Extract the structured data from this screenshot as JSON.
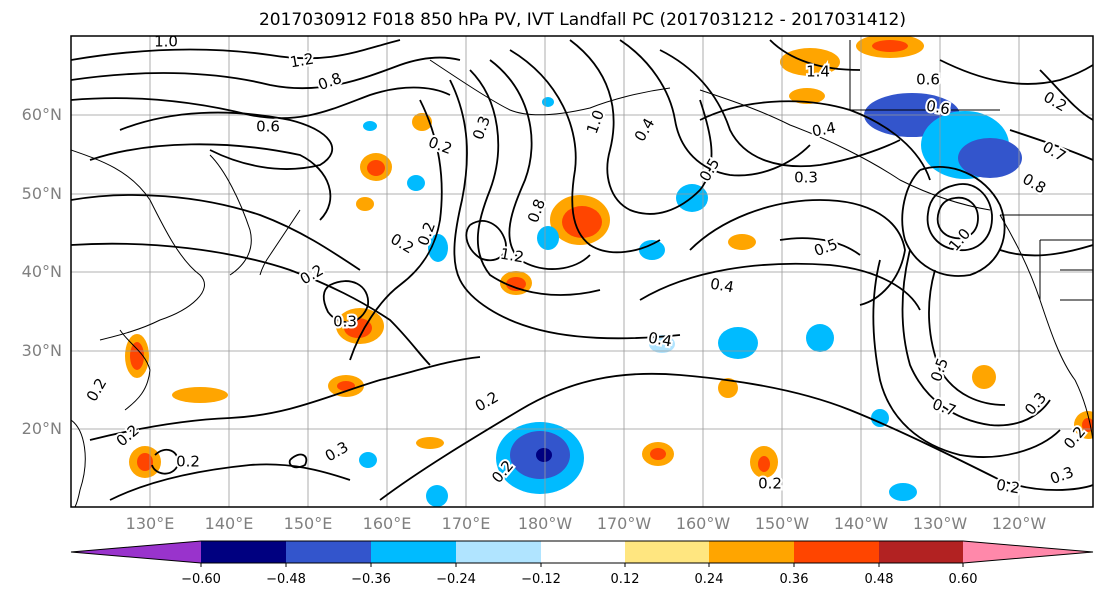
{
  "title": "2017030912 F018 850 hPa PV, IVT Landfall PC (2017031212 - 2017031412)",
  "lat_labels": [
    "60°N",
    "50°N",
    "40°N",
    "30°N",
    "20°N"
  ],
  "lon_labels": [
    "130°E",
    "140°E",
    "150°E",
    "160°E",
    "170°E",
    "180°W",
    "170°W",
    "160°W",
    "150°W",
    "140°W",
    "130°W",
    "120°W"
  ],
  "colorbar": {
    "colors": [
      "#9933cc",
      "#000080",
      "#3355cc",
      "#00bbff",
      "#b0e4ff",
      "#ffffff",
      "#ffe680",
      "#ffa500",
      "#ff4500",
      "#b22222",
      "#ff88aa"
    ],
    "tick_labels": [
      "−0.60",
      "−0.48",
      "−0.36",
      "−0.24",
      "−0.12",
      "0.12",
      "0.24",
      "0.36",
      "0.48",
      "0.60"
    ]
  },
  "contour_labels": [
    "1.0",
    "1.2",
    "0.8",
    "0.6",
    "0.2",
    "0.2",
    "0.2",
    "0.4",
    "0.6",
    "1.0",
    "0.8",
    "1.2",
    "0.2",
    "0.3",
    "0.2",
    "0.4",
    "0.3",
    "0.2",
    "0.2",
    "0.2",
    "0.4",
    "0.4",
    "1.4",
    "0.6",
    "0.3",
    "0.5",
    "0.5",
    "0.3",
    "0.7",
    "0.8",
    "1.0",
    "0.2",
    "0.2",
    "0.3",
    "0.5",
    "0.7",
    "0.2",
    "0.2",
    "0.3",
    "0.2"
  ]
}
